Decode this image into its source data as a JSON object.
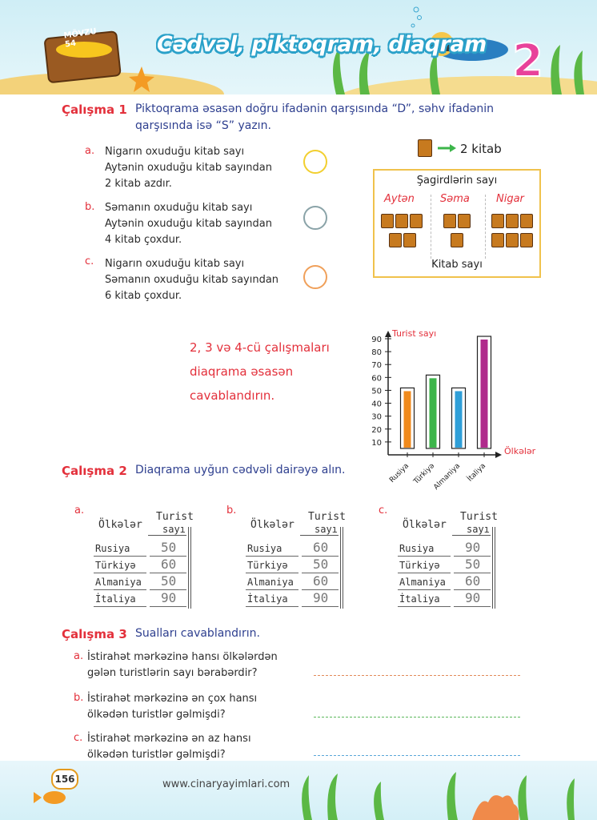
{
  "header": {
    "topic": "MÖVZU 54",
    "title": "Cədvəl, piktoqram, diaqram",
    "number": "2"
  },
  "ex1": {
    "label": "Çalışma 1",
    "line1": "Piktoqrama əsasən doğru ifadənin qarşısında “D”, səhv ifadənin",
    "line2": "qarşısında isə “S” yazın.",
    "items": [
      {
        "letter": "a.",
        "lines": [
          "Nigarın oxuduğu kitab sayı",
          "Aytənin oxuduğu kitab sayından",
          "2 kitab azdır."
        ],
        "circle_color": "#f2cf2f"
      },
      {
        "letter": "b.",
        "lines": [
          "Səmanın oxuduğu kitab sayı",
          "Aytənin oxuduğu kitab sayından",
          "4 kitab çoxdur."
        ],
        "circle_color": "#8aa3a8"
      },
      {
        "letter": "c.",
        "lines": [
          "Nigarın oxuduğu kitab sayı",
          "Səmanın oxuduğu kitab sayından",
          "6 kitab çoxdur."
        ],
        "circle_color": "#f0a05a"
      }
    ]
  },
  "pictogram": {
    "key_text": "2 kitab",
    "title": "Şagirdlərin sayı",
    "names": [
      "Aytən",
      "Səma",
      "Nigar"
    ],
    "book_icons": [
      5,
      3,
      6
    ],
    "footer": "Kitab sayı"
  },
  "intro": {
    "lines": [
      "2, 3 və 4-cü çalışmaları",
      "diaqrama əsasən",
      "cavablandırın."
    ]
  },
  "chart_data": {
    "type": "bar",
    "categories": [
      "Rusiya",
      "Türkiyə",
      "Almaniya",
      "İtaliya"
    ],
    "values": [
      50,
      60,
      50,
      90
    ],
    "colors": [
      "#f08a1c",
      "#3cb54a",
      "#2f9fd8",
      "#b02a8c"
    ],
    "ylabel": "Turist sayı",
    "xlabel": "Ölkələr",
    "yticks": [
      10,
      20,
      30,
      40,
      50,
      60,
      70,
      80,
      90
    ],
    "ylim": [
      0,
      90
    ]
  },
  "ex2": {
    "label": "Çalışma 2",
    "text": "Diaqrama uyğun cədvəli dairəyə alın.",
    "tables": [
      {
        "letter": "a.",
        "h1": "Ölkələr",
        "h2a": "Turist",
        "h2b": "sayı",
        "rows": [
          [
            "Rusiya",
            "50"
          ],
          [
            "Türkiyə",
            "60"
          ],
          [
            "Almaniya",
            "50"
          ],
          [
            "İtaliya",
            "90"
          ]
        ]
      },
      {
        "letter": "b.",
        "h1": "Ölkələr",
        "h2a": "Turist",
        "h2b": "sayı",
        "rows": [
          [
            "Rusiya",
            "60"
          ],
          [
            "Türkiyə",
            "50"
          ],
          [
            "Almaniya",
            "60"
          ],
          [
            "İtaliya",
            "90"
          ]
        ]
      },
      {
        "letter": "c.",
        "h1": "Ölkələr",
        "h2a": "Turist",
        "h2b": "sayı",
        "rows": [
          [
            "Rusiya",
            "90"
          ],
          [
            "Türkiyə",
            "50"
          ],
          [
            "Almaniya",
            "60"
          ],
          [
            "İtaliya",
            "90"
          ]
        ]
      }
    ]
  },
  "ex3": {
    "label": "Çalışma 3",
    "text": "Sualları cavablandırın.",
    "questions": [
      {
        "letter": "a.",
        "lines": [
          "İstirahət mərkəzinə hansı ölkələrdən",
          "gələn  turistlərin sayı bərabərdir?"
        ],
        "line_color": "#e38a5a"
      },
      {
        "letter": "b.",
        "lines": [
          "İstirahət mərkəzinə ən çox hansı",
          "ölkədən turistlər gəlmişdi?"
        ],
        "line_color": "#5cb85c"
      },
      {
        "letter": "c.",
        "lines": [
          "İstirahət mərkəzinə ən az hansı",
          "ölkədən turistlər gəlmişdi?"
        ],
        "line_color": "#5aa7d8"
      }
    ]
  },
  "footer": {
    "page": "156",
    "website": "www.cinaryayimlari.com"
  }
}
